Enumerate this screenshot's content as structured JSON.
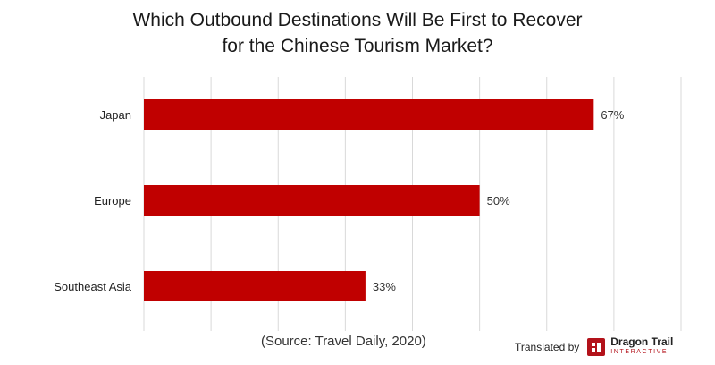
{
  "title_line1": "Which Outbound Destinations Will Be First to Recover",
  "title_line2": "for the Chinese Tourism Market?",
  "source": "(Source: Travel Daily, 2020)",
  "credit": {
    "prefix": "Translated by",
    "logo_icon": "dragon-trail-logo-icon",
    "brand_name": "Dragon Trail",
    "brand_sub": "INTERACTIVE"
  },
  "colors": {
    "bar": "#c00000",
    "grid": "#d9d9d9",
    "brand": "#b3121a"
  },
  "chart_data": {
    "type": "bar",
    "orientation": "horizontal",
    "title": "Which Outbound Destinations Will Be First to Recover for the Chinese Tourism Market?",
    "categories": [
      "Japan",
      "Europe",
      "Southeast Asia"
    ],
    "values": [
      67,
      50,
      33
    ],
    "value_labels": [
      "67%",
      "50%",
      "33%"
    ],
    "unit": "%",
    "xlim": [
      0,
      80
    ],
    "grid": true,
    "legend": "none"
  }
}
